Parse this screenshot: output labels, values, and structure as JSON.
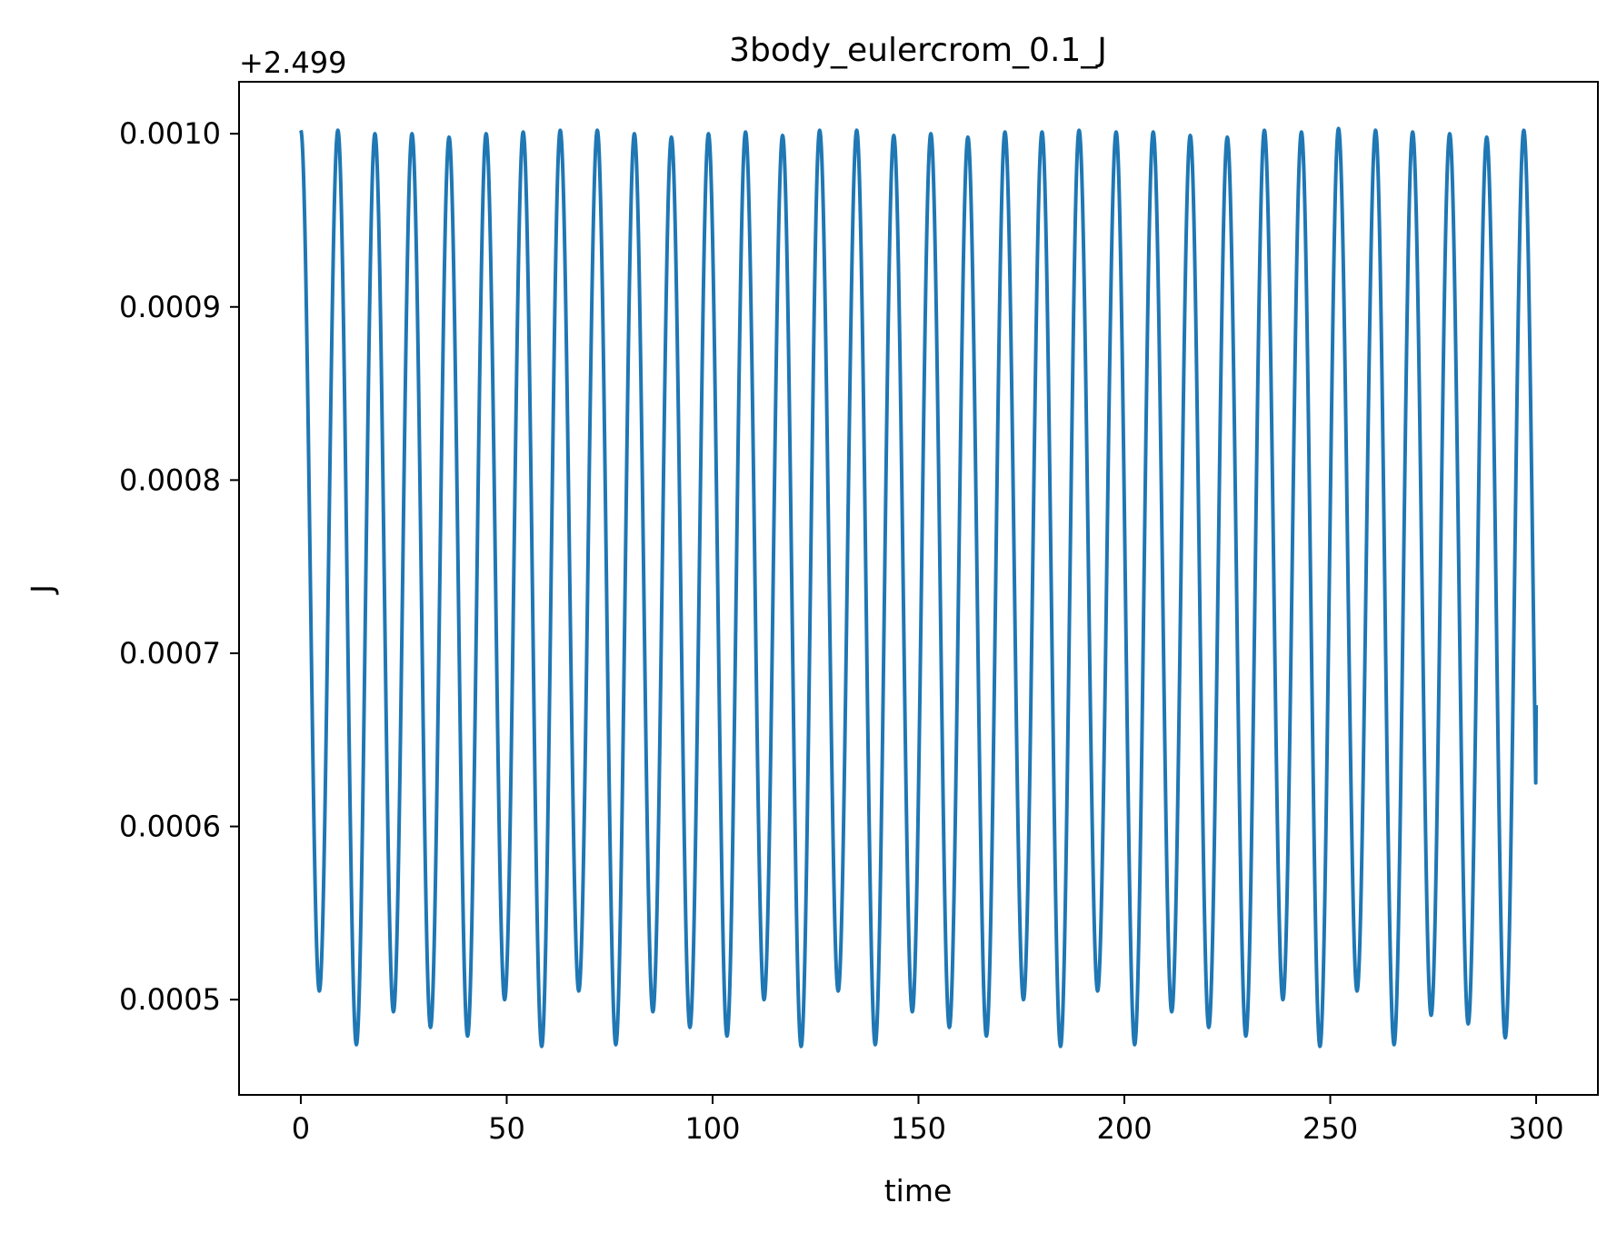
{
  "chart_data": {
    "type": "line",
    "title": "3body_eulercrom_0.1_J",
    "xlabel": "time",
    "ylabel": "J",
    "offset_label": "+2.499",
    "xlim": [
      -15,
      315
    ],
    "ylim": [
      0.000445,
      0.00103
    ],
    "xticks": [
      0,
      50,
      100,
      150,
      200,
      250,
      300
    ],
    "yticks": [
      0.0005,
      0.0006,
      0.0007,
      0.0008,
      0.0009,
      0.001
    ],
    "ytick_labels": [
      "0.0005",
      "0.0006",
      "0.0007",
      "0.0008",
      "0.0009",
      "0.0010"
    ],
    "grid": false,
    "color": "#1f77b4",
    "series": [
      {
        "start": [
          0,
          0.001002
        ],
        "peak_times": [
          0,
          9,
          18,
          27,
          36,
          45,
          54,
          63,
          72,
          81,
          90,
          99,
          108,
          117,
          126,
          135,
          144,
          153,
          162,
          171,
          180,
          189,
          198,
          207,
          216,
          225,
          234,
          243,
          252,
          261,
          270,
          279,
          288,
          297
        ],
        "peak_values": [
          0.001002,
          0.001002,
          0.001,
          0.001,
          0.000998,
          0.001,
          0.001001,
          0.001002,
          0.001002,
          0.001,
          0.000998,
          0.001,
          0.001001,
          0.000999,
          0.001002,
          0.001002,
          0.000999,
          0.001,
          0.000998,
          0.001001,
          0.001001,
          0.001002,
          0.001001,
          0.001001,
          0.000999,
          0.000998,
          0.001002,
          0.001001,
          0.001003,
          0.001002,
          0.001001,
          0.001,
          0.000998,
          0.001002
        ],
        "trough_times": [
          4.5,
          13.5,
          22.5,
          31.5,
          40.5,
          49.5,
          58.5,
          67.5,
          76.5,
          85.5,
          94.5,
          103.5,
          112.5,
          121.5,
          130.5,
          139.5,
          148.5,
          157.5,
          166.5,
          175.5,
          184.5,
          193.5,
          202.5,
          211.5,
          220.5,
          229.5,
          238.5,
          247.5,
          256.5,
          265.5,
          274.5,
          283.5,
          292.5
        ],
        "trough_values": [
          0.000505,
          0.000474,
          0.000493,
          0.000484,
          0.000479,
          0.0005,
          0.000473,
          0.000505,
          0.000474,
          0.000493,
          0.000484,
          0.000479,
          0.0005,
          0.000473,
          0.000505,
          0.000474,
          0.000493,
          0.000484,
          0.000479,
          0.0005,
          0.000473,
          0.000505,
          0.000474,
          0.000493,
          0.000484,
          0.000479,
          0.0005,
          0.000473,
          0.000505,
          0.000474,
          0.000491,
          0.000486,
          0.000478
        ],
        "end": [
          300,
          0.00067
        ]
      }
    ]
  }
}
